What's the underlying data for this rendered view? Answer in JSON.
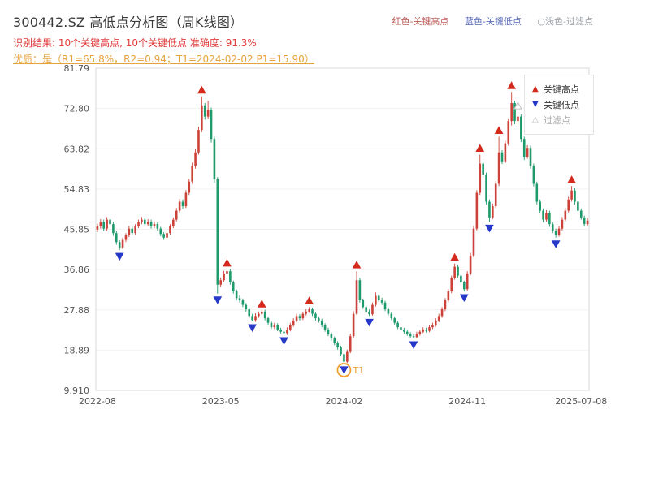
{
  "header": {
    "title": "300442.SZ 高低点分析图（周K线图）",
    "caption_items": [
      {
        "text": "红色-关键高点",
        "color": "#bb5a54"
      },
      {
        "text": "蓝色-关键低点",
        "color": "#5a6cbb"
      },
      {
        "text": "○浅色-过滤点",
        "color": "#9aa0a6"
      }
    ],
    "result_line": "识别结果: 10个关键高点, 10个关键低点  准确度: 91.3%",
    "result_color": "#e03c3c",
    "quality_line": "优质：是（R1=65.8%，R2=0.94；T1=2024-02-02 P1=15.90）",
    "quality_color": "#e6a23c"
  },
  "legend": {
    "items": [
      {
        "label": "关键高点",
        "glyph": "▲",
        "color": "#d42a1e",
        "label_color": "#333333"
      },
      {
        "label": "关键低点",
        "glyph": "▼",
        "color": "#2638c8",
        "label_color": "#333333"
      },
      {
        "label": "过滤点",
        "glyph": "△",
        "color": "#b5b5b5",
        "label_color": "#aaaaaa"
      }
    ]
  },
  "chart_data": {
    "type": "candlestick",
    "timeframe": "weekly",
    "title": "300442.SZ 高低点分析图（周K线图）",
    "ylim": [
      9.91,
      81.79
    ],
    "y_ticks": [
      "81.79",
      "72.80",
      "63.82",
      "54.83",
      "45.85",
      "36.86",
      "27.88",
      "18.89",
      "9.910"
    ],
    "x_ticks": [
      {
        "label": "2022-08",
        "index": 0
      },
      {
        "label": "2023-05",
        "index": 39
      },
      {
        "label": "2024-02",
        "index": 78
      },
      {
        "label": "2024-11",
        "index": 117
      },
      {
        "label": "2025-07-08",
        "index": 153
      }
    ],
    "colors": {
      "up": "#cc4238",
      "down": "#1e9a6b",
      "key_high": "#d42a1e",
      "key_low": "#2638c8",
      "filtered": "#c0c0c0",
      "annotation": "#f0a030",
      "axis_text": "#555555",
      "grid": "#f2f2f2",
      "border": "#d8d8d8"
    },
    "candles": [
      [
        45.8,
        47.1,
        45.2,
        46.5
      ],
      [
        46.5,
        48.1,
        46.0,
        47.5
      ],
      [
        47.5,
        48.0,
        45.4,
        46.0
      ],
      [
        46.0,
        48.6,
        45.5,
        48.0
      ],
      [
        48.0,
        48.5,
        46.4,
        47.0
      ],
      [
        47.0,
        47.5,
        44.4,
        45.0
      ],
      [
        45.0,
        45.4,
        42.4,
        43.0
      ],
      [
        43.0,
        43.4,
        41.2,
        41.8
      ],
      [
        41.8,
        44.0,
        41.4,
        43.5
      ],
      [
        43.5,
        45.0,
        43.0,
        44.5
      ],
      [
        44.5,
        46.6,
        44.1,
        46.0
      ],
      [
        46.0,
        46.5,
        44.5,
        45.0
      ],
      [
        45.0,
        47.0,
        44.6,
        46.5
      ],
      [
        46.5,
        48.0,
        46.1,
        47.5
      ],
      [
        47.5,
        48.6,
        47.0,
        48.0
      ],
      [
        48.0,
        48.4,
        46.5,
        47.0
      ],
      [
        47.0,
        48.1,
        46.6,
        47.5
      ],
      [
        47.5,
        48.0,
        46.0,
        46.5
      ],
      [
        46.5,
        47.6,
        46.1,
        47.0
      ],
      [
        47.0,
        47.4,
        45.5,
        46.0
      ],
      [
        46.0,
        46.4,
        44.3,
        44.8
      ],
      [
        44.8,
        45.2,
        43.5,
        44.0
      ],
      [
        44.0,
        45.6,
        43.6,
        45.0
      ],
      [
        45.0,
        47.0,
        44.6,
        46.5
      ],
      [
        46.5,
        48.5,
        46.1,
        48.0
      ],
      [
        48.0,
        50.6,
        47.6,
        50.0
      ],
      [
        50.0,
        52.6,
        49.5,
        52.0
      ],
      [
        52.0,
        52.5,
        50.4,
        51.0
      ],
      [
        51.0,
        54.6,
        50.6,
        54.0
      ],
      [
        54.0,
        57.1,
        53.5,
        56.5
      ],
      [
        56.5,
        60.7,
        56.0,
        60.0
      ],
      [
        60.0,
        63.7,
        59.4,
        63.0
      ],
      [
        63.0,
        68.7,
        62.5,
        68.0
      ],
      [
        68.0,
        75.5,
        67.5,
        73.5
      ],
      [
        73.5,
        74.0,
        70.3,
        71.0
      ],
      [
        71.0,
        74.5,
        70.5,
        72.5
      ],
      [
        72.5,
        73.0,
        65.2,
        66.0
      ],
      [
        66.0,
        66.5,
        56.2,
        57.0
      ],
      [
        57.0,
        57.5,
        31.5,
        33.5
      ],
      [
        33.5,
        35.1,
        33.0,
        34.5
      ],
      [
        34.5,
        36.6,
        34.1,
        36.0
      ],
      [
        36.0,
        36.9,
        35.5,
        36.5
      ],
      [
        36.5,
        37.0,
        33.5,
        34.0
      ],
      [
        34.0,
        34.4,
        31.5,
        32.0
      ],
      [
        32.0,
        32.4,
        30.0,
        30.5
      ],
      [
        30.5,
        31.1,
        29.5,
        30.0
      ],
      [
        30.0,
        30.4,
        28.5,
        29.0
      ],
      [
        29.0,
        29.4,
        27.5,
        28.0
      ],
      [
        28.0,
        28.4,
        26.0,
        26.5
      ],
      [
        26.5,
        27.0,
        25.3,
        25.6
      ],
      [
        25.6,
        27.1,
        25.2,
        26.5
      ],
      [
        26.5,
        27.5,
        26.1,
        27.0
      ],
      [
        27.0,
        27.8,
        26.6,
        27.5
      ],
      [
        27.5,
        27.9,
        25.5,
        26.0
      ],
      [
        26.0,
        26.4,
        24.5,
        25.0
      ],
      [
        25.0,
        25.4,
        23.6,
        24.0
      ],
      [
        24.0,
        25.0,
        23.6,
        24.5
      ],
      [
        24.5,
        24.9,
        23.1,
        23.5
      ],
      [
        23.5,
        23.9,
        22.6,
        23.0
      ],
      [
        23.0,
        23.4,
        22.4,
        22.7
      ],
      [
        22.7,
        24.0,
        22.3,
        23.5
      ],
      [
        23.5,
        25.0,
        23.1,
        24.5
      ],
      [
        24.5,
        26.0,
        24.1,
        25.5
      ],
      [
        25.5,
        27.0,
        25.1,
        26.5
      ],
      [
        26.5,
        26.9,
        25.5,
        26.0
      ],
      [
        26.0,
        27.5,
        25.6,
        27.0
      ],
      [
        27.0,
        28.0,
        26.6,
        27.5
      ],
      [
        27.5,
        28.5,
        27.2,
        28.0
      ],
      [
        28.0,
        28.4,
        26.5,
        27.0
      ],
      [
        27.0,
        27.4,
        25.5,
        26.0
      ],
      [
        26.0,
        26.4,
        25.0,
        25.5
      ],
      [
        25.5,
        25.9,
        24.0,
        24.5
      ],
      [
        24.5,
        24.9,
        23.0,
        23.5
      ],
      [
        23.5,
        23.9,
        22.0,
        22.5
      ],
      [
        22.5,
        22.9,
        21.0,
        21.5
      ],
      [
        21.5,
        21.9,
        20.0,
        20.5
      ],
      [
        20.5,
        20.9,
        19.0,
        19.5
      ],
      [
        19.5,
        19.9,
        17.6,
        18.0
      ],
      [
        18.0,
        18.3,
        15.9,
        16.3
      ],
      [
        16.3,
        19.0,
        16.0,
        18.5
      ],
      [
        18.5,
        22.6,
        18.2,
        22.0
      ],
      [
        22.0,
        27.6,
        21.6,
        27.0
      ],
      [
        27.0,
        36.5,
        26.8,
        34.5
      ],
      [
        34.5,
        35.0,
        29.5,
        30.0
      ],
      [
        30.0,
        30.4,
        28.1,
        28.5
      ],
      [
        28.5,
        28.9,
        27.1,
        27.5
      ],
      [
        27.5,
        28.0,
        26.5,
        26.9
      ],
      [
        26.9,
        29.5,
        26.6,
        29.0
      ],
      [
        29.0,
        31.8,
        28.6,
        31.0
      ],
      [
        31.0,
        31.4,
        29.6,
        30.0
      ],
      [
        30.0,
        30.6,
        29.0,
        29.5
      ],
      [
        29.5,
        29.9,
        27.6,
        28.0
      ],
      [
        28.0,
        28.4,
        26.6,
        27.0
      ],
      [
        27.0,
        27.4,
        25.6,
        26.0
      ],
      [
        26.0,
        26.4,
        24.6,
        25.0
      ],
      [
        25.0,
        25.4,
        23.6,
        24.0
      ],
      [
        24.0,
        24.6,
        23.1,
        23.5
      ],
      [
        23.5,
        23.9,
        22.6,
        23.0
      ],
      [
        23.0,
        23.4,
        22.1,
        22.5
      ],
      [
        22.5,
        22.9,
        21.7,
        22.0
      ],
      [
        22.0,
        22.4,
        21.5,
        21.8
      ],
      [
        21.8,
        23.0,
        21.6,
        22.5
      ],
      [
        22.5,
        23.4,
        22.1,
        23.0
      ],
      [
        23.0,
        24.0,
        22.7,
        23.5
      ],
      [
        23.5,
        23.9,
        22.8,
        23.2
      ],
      [
        23.2,
        24.4,
        22.9,
        24.0
      ],
      [
        24.0,
        25.0,
        23.6,
        24.5
      ],
      [
        24.5,
        26.0,
        24.1,
        25.5
      ],
      [
        25.5,
        27.0,
        25.1,
        26.5
      ],
      [
        26.5,
        28.5,
        26.1,
        28.0
      ],
      [
        28.0,
        30.5,
        27.6,
        30.0
      ],
      [
        30.0,
        32.5,
        29.6,
        32.0
      ],
      [
        32.0,
        35.5,
        31.6,
        35.0
      ],
      [
        35.0,
        38.2,
        34.6,
        37.5
      ],
      [
        37.5,
        37.9,
        35.0,
        35.5
      ],
      [
        35.5,
        35.9,
        33.5,
        34.0
      ],
      [
        34.0,
        34.4,
        32.0,
        32.5
      ],
      [
        32.5,
        36.5,
        32.2,
        36.0
      ],
      [
        36.0,
        40.6,
        35.6,
        40.0
      ],
      [
        40.0,
        46.6,
        39.6,
        46.0
      ],
      [
        46.0,
        54.6,
        45.6,
        54.0
      ],
      [
        54.0,
        62.5,
        53.5,
        60.5
      ],
      [
        60.5,
        61.0,
        57.4,
        58.0
      ],
      [
        58.0,
        58.5,
        51.4,
        52.0
      ],
      [
        52.0,
        52.5,
        47.5,
        48.5
      ],
      [
        48.5,
        51.6,
        48.1,
        51.0
      ],
      [
        51.0,
        56.6,
        50.6,
        56.0
      ],
      [
        56.0,
        66.5,
        55.5,
        63.0
      ],
      [
        63.0,
        63.5,
        60.4,
        61.0
      ],
      [
        61.0,
        65.6,
        60.6,
        65.0
      ],
      [
        65.0,
        70.6,
        64.5,
        70.0
      ],
      [
        70.0,
        76.5,
        69.0,
        74.0
      ],
      [
        74.0,
        74.5,
        69.3,
        70.0
      ],
      [
        70.0,
        72.0,
        69.0,
        71.0
      ],
      [
        71.0,
        71.5,
        65.3,
        66.0
      ],
      [
        66.0,
        66.5,
        61.3,
        62.0
      ],
      [
        62.0,
        64.6,
        61.6,
        64.0
      ],
      [
        64.0,
        64.5,
        59.4,
        60.0
      ],
      [
        60.0,
        60.5,
        55.4,
        56.0
      ],
      [
        56.0,
        56.5,
        51.4,
        52.0
      ],
      [
        52.0,
        52.5,
        49.4,
        50.0
      ],
      [
        50.0,
        50.5,
        47.4,
        48.0
      ],
      [
        48.0,
        50.1,
        47.6,
        49.5
      ],
      [
        49.5,
        50.0,
        46.4,
        47.0
      ],
      [
        47.0,
        47.4,
        45.0,
        45.5
      ],
      [
        45.5,
        46.0,
        44.0,
        44.6
      ],
      [
        44.6,
        46.6,
        44.2,
        46.0
      ],
      [
        46.0,
        48.6,
        45.6,
        48.0
      ],
      [
        48.0,
        50.6,
        47.6,
        50.0
      ],
      [
        50.0,
        53.1,
        49.6,
        52.5
      ],
      [
        52.5,
        55.5,
        52.0,
        54.5
      ],
      [
        54.5,
        55.0,
        51.4,
        52.0
      ],
      [
        52.0,
        52.5,
        49.4,
        50.0
      ],
      [
        50.0,
        50.5,
        48.0,
        48.5
      ],
      [
        48.5,
        48.9,
        46.5,
        47.0
      ],
      [
        47.0,
        48.4,
        46.6,
        47.8
      ]
    ],
    "key_highs": [
      {
        "index": 33,
        "price": 75.5
      },
      {
        "index": 41,
        "price": 36.9
      },
      {
        "index": 52,
        "price": 27.8
      },
      {
        "index": 67,
        "price": 28.5
      },
      {
        "index": 82,
        "price": 36.5
      },
      {
        "index": 113,
        "price": 38.2
      },
      {
        "index": 121,
        "price": 62.5
      },
      {
        "index": 127,
        "price": 66.5
      },
      {
        "index": 131,
        "price": 76.5
      },
      {
        "index": 150,
        "price": 55.5
      }
    ],
    "key_lows": [
      {
        "index": 7,
        "price": 41.2
      },
      {
        "index": 38,
        "price": 31.5
      },
      {
        "index": 49,
        "price": 25.3
      },
      {
        "index": 59,
        "price": 22.4
      },
      {
        "index": 78,
        "price": 15.9
      },
      {
        "index": 86,
        "price": 26.5
      },
      {
        "index": 100,
        "price": 21.5
      },
      {
        "index": 116,
        "price": 32.0
      },
      {
        "index": 124,
        "price": 47.5
      },
      {
        "index": 145,
        "price": 44.0
      }
    ],
    "filtered_points": [
      {
        "index": 133,
        "price": 72.0
      }
    ],
    "annotations": [
      {
        "index": 78,
        "price": 15.9,
        "label": "T1"
      }
    ]
  }
}
